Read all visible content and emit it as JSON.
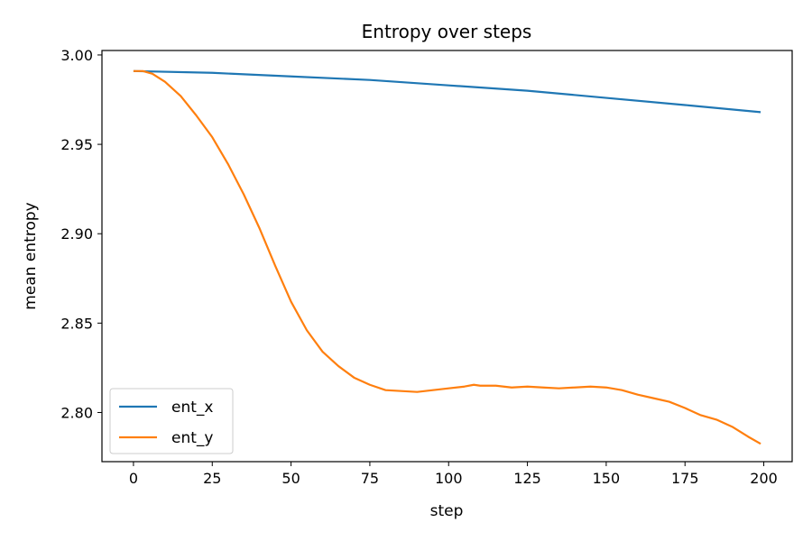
{
  "chart_data": {
    "type": "line",
    "title": "Entropy over steps",
    "xlabel": "step",
    "ylabel": "mean entropy",
    "xlim": [
      -10,
      209
    ],
    "ylim": [
      2.7725,
      3.0025
    ],
    "xticks": [
      0,
      25,
      50,
      75,
      100,
      125,
      150,
      175,
      200
    ],
    "yticks": [
      2.8,
      2.85,
      2.9,
      2.95,
      3.0
    ],
    "ytick_labels": [
      "2.80",
      "2.85",
      "2.90",
      "2.95",
      "3.00"
    ],
    "legend_location": "lower-left",
    "grid": false,
    "series": [
      {
        "name": "ent_x",
        "color": "#1f77b4",
        "points": [
          [
            0,
            2.991
          ],
          [
            25,
            2.99
          ],
          [
            50,
            2.988
          ],
          [
            75,
            2.986
          ],
          [
            100,
            2.983
          ],
          [
            125,
            2.98
          ],
          [
            150,
            2.976
          ],
          [
            175,
            2.972
          ],
          [
            199,
            2.968
          ]
        ]
      },
      {
        "name": "ent_y",
        "color": "#ff7f0e",
        "points": [
          [
            0,
            2.991
          ],
          [
            3,
            2.991
          ],
          [
            6,
            2.9895
          ],
          [
            10,
            2.985
          ],
          [
            15,
            2.977
          ],
          [
            20,
            2.966
          ],
          [
            25,
            2.954
          ],
          [
            30,
            2.939
          ],
          [
            35,
            2.922
          ],
          [
            40,
            2.903
          ],
          [
            45,
            2.882
          ],
          [
            50,
            2.862
          ],
          [
            55,
            2.846
          ],
          [
            60,
            2.834
          ],
          [
            65,
            2.826
          ],
          [
            70,
            2.8195
          ],
          [
            75,
            2.8155
          ],
          [
            80,
            2.8125
          ],
          [
            85,
            2.812
          ],
          [
            90,
            2.8115
          ],
          [
            95,
            2.8125
          ],
          [
            100,
            2.8135
          ],
          [
            105,
            2.8145
          ],
          [
            108,
            2.8155
          ],
          [
            110,
            2.815
          ],
          [
            115,
            2.815
          ],
          [
            120,
            2.814
          ],
          [
            125,
            2.8145
          ],
          [
            130,
            2.814
          ],
          [
            135,
            2.8135
          ],
          [
            140,
            2.814
          ],
          [
            145,
            2.8145
          ],
          [
            150,
            2.814
          ],
          [
            155,
            2.8125
          ],
          [
            160,
            2.81
          ],
          [
            165,
            2.808
          ],
          [
            170,
            2.806
          ],
          [
            175,
            2.8025
          ],
          [
            180,
            2.7985
          ],
          [
            185,
            2.796
          ],
          [
            190,
            2.792
          ],
          [
            195,
            2.7865
          ],
          [
            199,
            2.7825
          ]
        ]
      }
    ]
  }
}
